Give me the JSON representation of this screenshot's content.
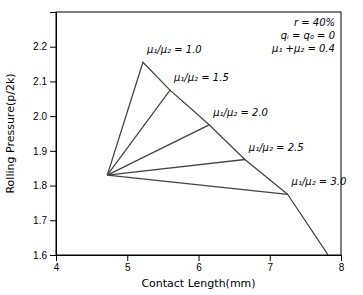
{
  "chart_data": {
    "type": "line",
    "title": "",
    "xlabel": "Contact Length(mm)",
    "ylabel": "Rolling Pressure(p/2k)",
    "xlim": [
      4,
      8
    ],
    "ylim": [
      1.6,
      2.3
    ],
    "xticks": [
      4,
      5,
      6,
      7,
      8
    ],
    "yticks": [
      1.6,
      1.7,
      1.8,
      1.9,
      {
        "value": 2.0,
        "label": "2.0"
      },
      2.1,
      2.2
    ],
    "color": "#444444",
    "series": [
      {
        "name": "μ₁/μ₂ = 1.0",
        "x": [
          4.72,
          5.22,
          5.6
        ],
        "values": [
          1.83,
          2.155,
          2.075
        ]
      },
      {
        "name": "μ₁/μ₂ = 1.5",
        "x": [
          4.72,
          5.6,
          6.15
        ],
        "values": [
          1.83,
          2.075,
          1.975
        ]
      },
      {
        "name": "μ₁/μ₂ = 2.0",
        "x": [
          4.72,
          6.15,
          6.65
        ],
        "values": [
          1.83,
          1.975,
          1.875
        ]
      },
      {
        "name": "μ₁/μ₂ = 2.5",
        "x": [
          4.72,
          6.65,
          7.25
        ],
        "values": [
          1.83,
          1.875,
          1.775
        ]
      },
      {
        "name": "μ₁/μ₂ = 3.0",
        "x": [
          4.72,
          7.25,
          7.82
        ],
        "values": [
          1.83,
          1.775,
          1.6
        ]
      }
    ],
    "annotations": [
      "r = 40%",
      "qᵢ = q₀ = 0",
      "μ₁ +μ₂ = 0.4"
    ]
  }
}
